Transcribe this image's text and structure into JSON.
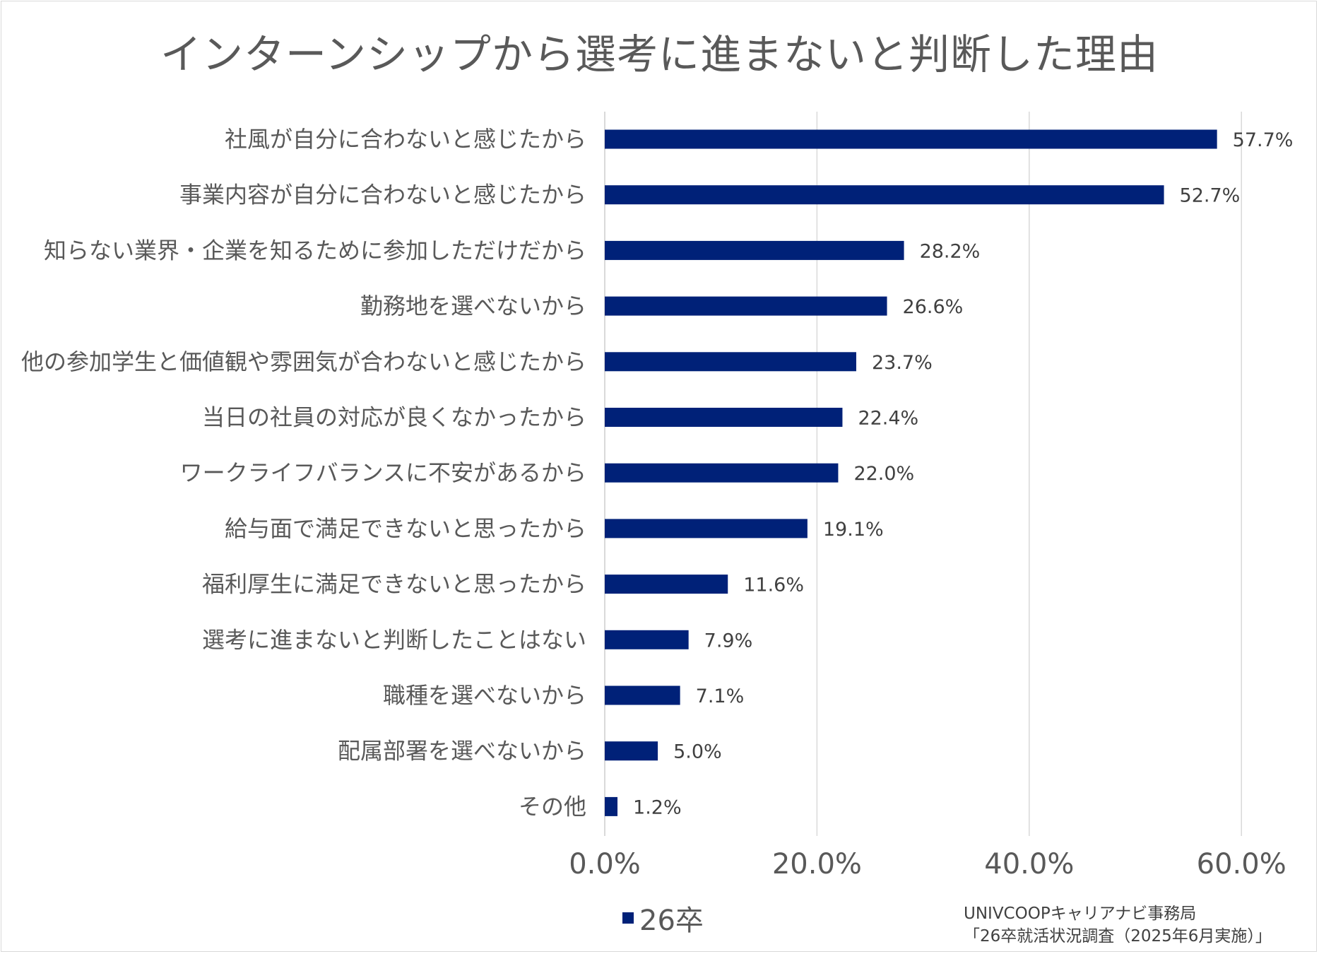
{
  "chart_data": {
    "type": "bar",
    "orientation": "horizontal",
    "title": "インターンシップから選考に進まないと判断した理由",
    "categories": [
      "社風が自分に合わないと感じたから",
      "事業内容が自分に合わないと感じたから",
      "知らない業界・企業を知るために参加しただけだから",
      "勤務地を選べないから",
      "他の参加学生と価値観や雰囲気が合わないと感じたから",
      "当日の社員の対応が良くなかったから",
      "ワークライフバランスに不安があるから",
      "給与面で満足できないと思ったから",
      "福利厚生に満足できないと思ったから",
      "選考に進まないと判断したことはない",
      "職種を選べないから",
      "配属部署を選べないから",
      "その他"
    ],
    "series": [
      {
        "name": "26卒",
        "values": [
          57.7,
          52.7,
          28.2,
          26.6,
          23.7,
          22.4,
          22.0,
          19.1,
          11.6,
          7.9,
          7.1,
          5.0,
          1.2
        ],
        "value_labels": [
          "57.7%",
          "52.7%",
          "28.2%",
          "26.6%",
          "23.7%",
          "22.4%",
          "22.0%",
          "19.1%",
          "11.6%",
          "7.9%",
          "7.1%",
          "5.0%",
          "1.2%"
        ],
        "color": "#002178"
      }
    ],
    "xlim": [
      0,
      60
    ],
    "xticks": [
      0,
      20,
      40,
      60
    ],
    "xtick_labels": [
      "0.0%",
      "20.0%",
      "40.0%",
      "60.0%"
    ],
    "grid": true,
    "legend_position": "bottom-center"
  },
  "legend": {
    "label": "26卒"
  },
  "source": {
    "line1": "UNIVCOOPキャリアナビ事務局",
    "line2": "「26卒就活状況調査（2025年6月実施）」"
  },
  "colors": {
    "bar": "#002178",
    "grid": "#d9d9d9",
    "text": "#595959"
  }
}
